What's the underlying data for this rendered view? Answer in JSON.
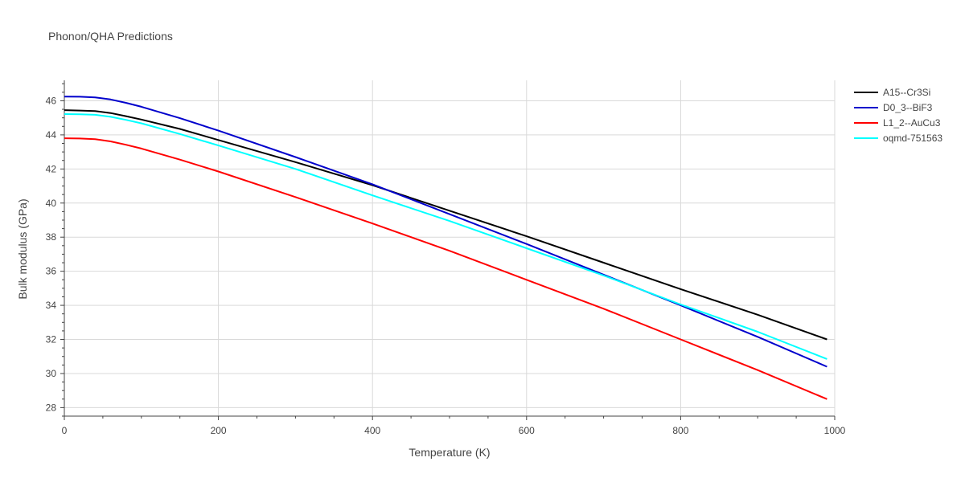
{
  "chart_data": {
    "type": "line",
    "title": "Phonon/QHA Predictions",
    "xlabel": "Temperature (K)",
    "ylabel": "Bulk modulus (GPa)",
    "xlim": [
      0,
      1000
    ],
    "ylim": [
      27.5,
      47.2
    ],
    "x_ticks": [
      0,
      200,
      400,
      600,
      800,
      1000
    ],
    "y_ticks": [
      28,
      30,
      32,
      34,
      36,
      38,
      40,
      42,
      44,
      46
    ],
    "grid": true,
    "legend_position": "top-right",
    "series": [
      {
        "name": "A15--Cr3Si",
        "color": "#000000",
        "x": [
          0,
          20,
          40,
          60,
          80,
          100,
          150,
          200,
          300,
          400,
          500,
          600,
          700,
          800,
          900,
          990
        ],
        "y": [
          45.45,
          45.43,
          45.4,
          45.28,
          45.1,
          44.9,
          44.35,
          43.7,
          42.4,
          41.05,
          39.55,
          38.05,
          36.5,
          34.95,
          33.45,
          32.0
        ]
      },
      {
        "name": "D0_3--BiF3",
        "color": "#0000cc",
        "x": [
          0,
          20,
          40,
          60,
          80,
          100,
          150,
          200,
          300,
          400,
          500,
          600,
          700,
          800,
          900,
          990
        ],
        "y": [
          46.25,
          46.24,
          46.2,
          46.08,
          45.88,
          45.65,
          44.98,
          44.25,
          42.7,
          41.1,
          39.35,
          37.6,
          35.8,
          34.0,
          32.15,
          30.4
        ]
      },
      {
        "name": "L1_2--AuCu3",
        "color": "#ff0000",
        "x": [
          0,
          20,
          40,
          60,
          80,
          100,
          150,
          200,
          300,
          400,
          500,
          600,
          700,
          800,
          900,
          990
        ],
        "y": [
          43.8,
          43.79,
          43.75,
          43.62,
          43.42,
          43.2,
          42.55,
          41.85,
          40.35,
          38.8,
          37.2,
          35.5,
          33.8,
          32.0,
          30.2,
          28.5
        ]
      },
      {
        "name": "oqmd-751563",
        "color": "#00ffff",
        "x": [
          0,
          20,
          40,
          60,
          80,
          100,
          150,
          200,
          300,
          400,
          500,
          600,
          700,
          800,
          900,
          990
        ],
        "y": [
          45.22,
          45.21,
          45.18,
          45.06,
          44.88,
          44.68,
          44.05,
          43.38,
          42.0,
          40.45,
          38.95,
          37.35,
          35.75,
          34.05,
          32.45,
          30.85
        ]
      }
    ]
  }
}
